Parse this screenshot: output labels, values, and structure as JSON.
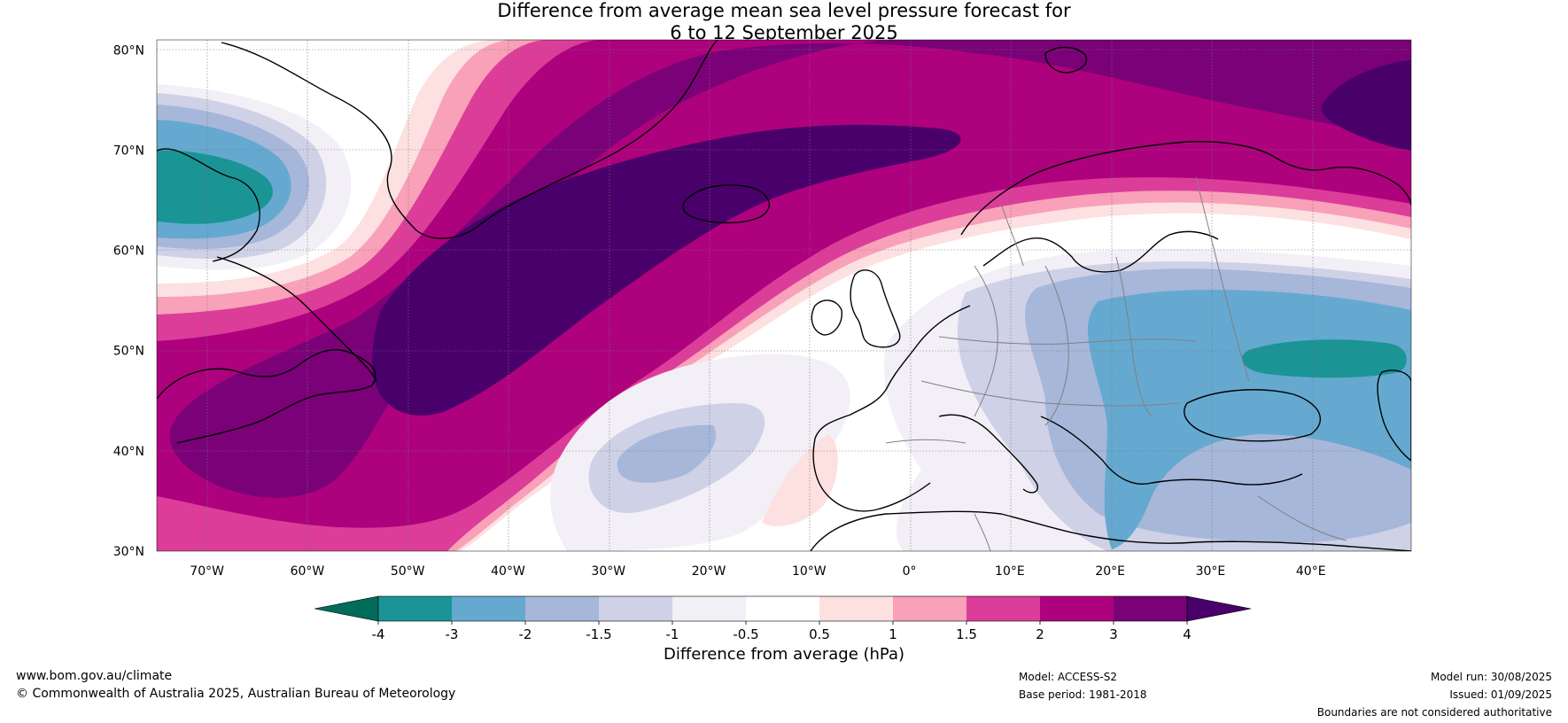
{
  "title": {
    "line1": "Difference from average mean sea level pressure forecast for",
    "line2": "6 to 12 September 2025"
  },
  "map": {
    "lon_range": [
      -75,
      50
    ],
    "lat_range": [
      30,
      80
    ],
    "lat_labels": [
      {
        "value": 80,
        "text": "80°N"
      },
      {
        "value": 70,
        "text": "70°N"
      },
      {
        "value": 60,
        "text": "60°N"
      },
      {
        "value": 50,
        "text": "50°N"
      },
      {
        "value": 40,
        "text": "40°N"
      },
      {
        "value": 30,
        "text": "30°N"
      }
    ],
    "lon_labels": [
      {
        "value": -70,
        "text": "70°W"
      },
      {
        "value": -60,
        "text": "60°W"
      },
      {
        "value": -50,
        "text": "50°W"
      },
      {
        "value": -40,
        "text": "40°W"
      },
      {
        "value": -30,
        "text": "30°W"
      },
      {
        "value": -20,
        "text": "20°W"
      },
      {
        "value": -10,
        "text": "10°W"
      },
      {
        "value": 0,
        "text": "0°"
      },
      {
        "value": 10,
        "text": "10°E"
      },
      {
        "value": 20,
        "text": "20°E"
      },
      {
        "value": 30,
        "text": "30°E"
      },
      {
        "value": 40,
        "text": "40°E"
      }
    ]
  },
  "colorbar": {
    "label": "Difference from average (hPa)",
    "colors": [
      "#1b9496",
      "#65a9d0",
      "#a6b7da",
      "#cfd1e7",
      "#f3eff6",
      "#ffffff",
      "#fde0e0",
      "#f8a1b9",
      "#dc3d99",
      "#ae017e",
      "#7a0177"
    ],
    "under_color": "#016c59",
    "over_color": "#49006a",
    "ticks": [
      "-4",
      "-3",
      "-2",
      "-1.5",
      "-1",
      "-0.5",
      "0.5",
      "1",
      "1.5",
      "2",
      "3",
      "4"
    ]
  },
  "footer": {
    "website": "www.bom.gov.au/climate",
    "copyright": "© Commonwealth of Australia 2025, Australian Bureau of Meteorology",
    "model": "Model: ACCESS-S2",
    "base_period": "Base period: 1981-2018",
    "model_run": "Model run: 30/08/2025",
    "issued": "Issued: 01/09/2025",
    "disclaimer": "Boundaries are not considered authoritative"
  }
}
